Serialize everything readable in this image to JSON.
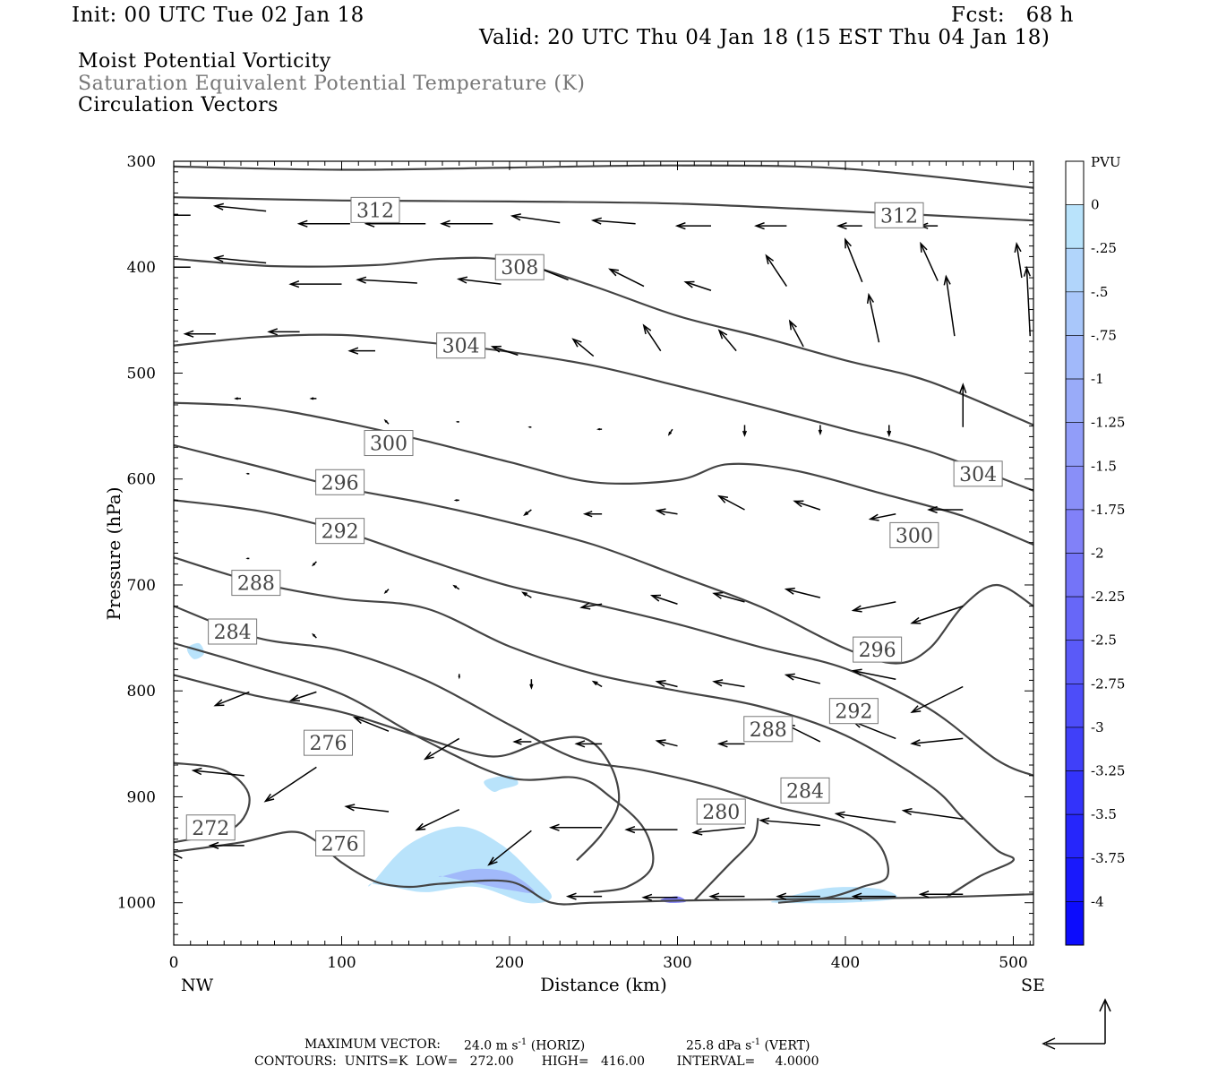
{
  "header": {
    "init": "Init: 00 UTC Tue 02 Jan 18",
    "fcst": "Fcst:   68 h",
    "valid": "Valid: 20 UTC Thu 04 Jan 18 (15 EST Thu 04 Jan 18)"
  },
  "titles": {
    "line1": "Moist Potential Vorticity",
    "line2": "Saturation Equivalent Potential Temperature (K)",
    "line3": "Circulation Vectors"
  },
  "footer": {
    "max_label": "MAXIMUM VECTOR:",
    "max_horiz_value": "24.0 m s",
    "max_horiz_suffix": " (HORIZ)",
    "max_vert_value": "25.8 dPa s",
    "max_vert_suffix": " (VERT)",
    "exponent": "-1",
    "contours": "CONTOURS:  UNITS=K  LOW=   272.00       HIGH=   416.00        INTERVAL=     4.0000"
  },
  "colors": {
    "contour": "#444444",
    "vector": "#000000",
    "pv_light": "#b9e3fb"
  },
  "chart_data": {
    "type": "contour",
    "xlabel": "Distance (km)",
    "ylabel": "Pressure (hPa)",
    "x_ticks": [
      0,
      100,
      200,
      300,
      400,
      500
    ],
    "y_ticks": [
      300,
      400,
      500,
      600,
      700,
      800,
      900,
      1000
    ],
    "xlim": [
      0,
      512
    ],
    "ylim": [
      300,
      1040
    ],
    "x_end_labels": {
      "left": "NW",
      "right": "SE"
    },
    "colorbar": {
      "unit": "PVU",
      "ticks": [
        "0",
        "-.25",
        "-.5",
        "-.75",
        "-1",
        "-1.25",
        "-1.5",
        "-1.75",
        "-2",
        "-2.25",
        "-2.5",
        "-2.75",
        "-3",
        "-3.25",
        "-3.5",
        "-3.75",
        "-4"
      ],
      "colors": [
        "#ffffff",
        "#ffffff",
        "#b9e3fb",
        "#b1d5fb",
        "#a9c7fa",
        "#a1b9fa",
        "#99abf9",
        "#919df9",
        "#898ff8",
        "#8181f8",
        "#7474f8",
        "#6767f8",
        "#5a5af8",
        "#4d4df9",
        "#4040f9",
        "#3333fa",
        "#2626fb",
        "#1919fc",
        "#0c0cfd"
      ]
    },
    "contours": [
      {
        "level": 312,
        "x": [
          0,
          100,
          200,
          300,
          400,
          512
        ],
        "p": [
          334,
          337,
          338,
          340,
          347,
          356
        ]
      },
      {
        "level": 312,
        "x": [
          0,
          100,
          200,
          300,
          400,
          512
        ],
        "p": [
          305,
          308,
          306,
          304,
          307,
          325
        ]
      },
      {
        "level": 308,
        "x": [
          0,
          60,
          120,
          160,
          200,
          250,
          300,
          350,
          400,
          450,
          512
        ],
        "p": [
          392,
          399,
          398,
          392,
          394,
          418,
          446,
          466,
          488,
          508,
          549
        ]
      },
      {
        "level": 304,
        "x": [
          0,
          50,
          100,
          150,
          200,
          250,
          300,
          350,
          400,
          450,
          512
        ],
        "p": [
          474,
          466,
          464,
          471,
          480,
          493,
          512,
          532,
          553,
          574,
          611
        ]
      },
      {
        "level": 300,
        "x": [
          0,
          50,
          100,
          150,
          200,
          250,
          300,
          330,
          370,
          420,
          470,
          512
        ],
        "p": [
          528,
          532,
          546,
          564,
          584,
          603,
          601,
          586,
          592,
          613,
          635,
          662
        ]
      },
      {
        "level": 296,
        "x": [
          0,
          50,
          100,
          150,
          200,
          250,
          300,
          350,
          400,
          430,
          450,
          470,
          490,
          512
        ],
        "p": [
          568,
          588,
          608,
          623,
          641,
          662,
          691,
          721,
          760,
          774,
          760,
          720,
          700,
          720
        ]
      },
      {
        "level": 292,
        "x": [
          0,
          50,
          100,
          150,
          200,
          250,
          300,
          350,
          400,
          450,
          490,
          512
        ],
        "p": [
          620,
          630,
          649,
          676,
          701,
          718,
          737,
          759,
          779,
          817,
          865,
          880
        ]
      },
      {
        "level": 288,
        "x": [
          0,
          50,
          100,
          150,
          200,
          250,
          300,
          350,
          400,
          450,
          470,
          490,
          500,
          480,
          460
        ],
        "p": [
          674,
          698,
          713,
          722,
          758,
          784,
          800,
          815,
          842,
          889,
          920,
          950,
          960,
          975,
          995
        ]
      },
      {
        "level": 284,
        "x": [
          0,
          50,
          100,
          150,
          200,
          240,
          280,
          320,
          360,
          400,
          420,
          425,
          410,
          390,
          360
        ],
        "p": [
          720,
          750,
          762,
          790,
          832,
          864,
          875,
          890,
          910,
          925,
          945,
          975,
          985,
          995,
          1000
        ]
      },
      {
        "level": 280,
        "x": [
          0,
          50,
          100,
          150,
          200,
          240,
          260,
          280,
          285,
          270,
          250
        ],
        "p": [
          755,
          778,
          803,
          847,
          882,
          882,
          900,
          930,
          965,
          985,
          990
        ]
      },
      {
        "level": 276,
        "x": [
          0,
          50,
          100,
          150,
          190,
          220,
          245,
          260,
          265,
          255,
          240
        ],
        "p": [
          785,
          805,
          820,
          845,
          862,
          848,
          845,
          870,
          905,
          935,
          960
        ]
      },
      {
        "level": 280,
        "x": [
          310,
          330,
          345,
          348
        ],
        "p": [
          998,
          965,
          940,
          920
        ]
      },
      {
        "level": 272,
        "x": [
          0,
          30,
          45,
          35,
          0
        ],
        "p": [
          868,
          875,
          900,
          930,
          943
        ]
      },
      {
        "level": 272,
        "x": [
          0,
          40,
          70,
          85,
          100,
          120,
          140,
          160,
          200,
          225,
          250,
          300,
          350,
          400,
          450,
          512
        ],
        "p": [
          952,
          943,
          933,
          942,
          962,
          980,
          985,
          982,
          980,
          1000,
          1000,
          998,
          997,
          996,
          995,
          992
        ]
      }
    ],
    "contour_labels": [
      {
        "text": "312",
        "x": 120,
        "p": 346
      },
      {
        "text": "312",
        "x": 432,
        "p": 351
      },
      {
        "text": "308",
        "x": 206,
        "p": 400
      },
      {
        "text": "304",
        "x": 171,
        "p": 474
      },
      {
        "text": "300",
        "x": 128,
        "p": 566
      },
      {
        "text": "296",
        "x": 99,
        "p": 603
      },
      {
        "text": "292",
        "x": 99,
        "p": 649
      },
      {
        "text": "288",
        "x": 49,
        "p": 698
      },
      {
        "text": "284",
        "x": 35,
        "p": 744
      },
      {
        "text": "276",
        "x": 92,
        "p": 849
      },
      {
        "text": "272",
        "x": 22,
        "p": 929
      },
      {
        "text": "276",
        "x": 99,
        "p": 944
      },
      {
        "text": "304",
        "x": 479,
        "p": 595
      },
      {
        "text": "300",
        "x": 441,
        "p": 653
      },
      {
        "text": "296",
        "x": 419,
        "p": 761
      },
      {
        "text": "292",
        "x": 405,
        "p": 819
      },
      {
        "text": "288",
        "x": 354,
        "p": 836
      },
      {
        "text": "284",
        "x": 376,
        "p": 894
      },
      {
        "text": "280",
        "x": 326,
        "p": 914
      }
    ],
    "pv_regions": [
      {
        "value": -0.25,
        "x": [
          118,
          140,
          170,
          195,
          215,
          225,
          210,
          180,
          150,
          130,
          118
        ],
        "p": [
          982,
          945,
          928,
          945,
          975,
          995,
          1000,
          985,
          990,
          985,
          982
        ]
      },
      {
        "value": -0.25,
        "x": [
          185,
          200,
          205,
          195,
          190
        ],
        "p": [
          885,
          880,
          888,
          893,
          895
        ]
      },
      {
        "value": -0.25,
        "x": [
          360,
          390,
          420,
          430,
          400,
          360
        ],
        "p": [
          997,
          986,
          987,
          996,
          1000,
          1000
        ]
      },
      {
        "value": -0.25,
        "x": [
          8,
          15,
          18,
          12
        ],
        "p": [
          760,
          755,
          765,
          770
        ]
      },
      {
        "value": -1.0,
        "x": [
          160,
          180,
          200,
          215,
          200,
          175,
          160
        ],
        "p": [
          975,
          968,
          972,
          990,
          988,
          980,
          975
        ]
      },
      {
        "value": -2.0,
        "x": [
          290,
          300,
          305,
          295
        ],
        "p": [
          997,
          994,
          999,
          1000
        ]
      }
    ],
    "vectors": [
      {
        "x": 10,
        "p": 351,
        "u": 30,
        "v": 0
      },
      {
        "x": 55,
        "p": 347,
        "u": 30,
        "v": -3
      },
      {
        "x": 105,
        "p": 359,
        "u": 30,
        "v": 0
      },
      {
        "x": 150,
        "p": 359,
        "u": 35,
        "v": 0
      },
      {
        "x": 190,
        "p": 359,
        "u": 30,
        "v": 0
      },
      {
        "x": 230,
        "p": 358,
        "u": 28,
        "v": -4
      },
      {
        "x": 275,
        "p": 359,
        "u": 25,
        "v": -2
      },
      {
        "x": 320,
        "p": 361,
        "u": 20,
        "v": 0
      },
      {
        "x": 365,
        "p": 361,
        "u": 18,
        "v": 0
      },
      {
        "x": 410,
        "p": 361,
        "u": 14,
        "v": 0
      },
      {
        "x": 455,
        "p": 361,
        "u": 10,
        "v": 0
      },
      {
        "x": 10,
        "p": 400,
        "u": 30,
        "v": 0
      },
      {
        "x": 55,
        "p": 396,
        "u": 30,
        "v": -3
      },
      {
        "x": 100,
        "p": 416,
        "u": 30,
        "v": 0
      },
      {
        "x": 145,
        "p": 415,
        "u": 35,
        "v": -2
      },
      {
        "x": 195,
        "p": 416,
        "u": 25,
        "v": -3
      },
      {
        "x": 235,
        "p": 412,
        "u": 25,
        "v": -10
      },
      {
        "x": 280,
        "p": 418,
        "u": 20,
        "v": -10
      },
      {
        "x": 320,
        "p": 422,
        "u": 15,
        "v": -5
      },
      {
        "x": 365,
        "p": 418,
        "u": 12,
        "v": -18
      },
      {
        "x": 410,
        "p": 414,
        "u": 10,
        "v": -25
      },
      {
        "x": 455,
        "p": 413,
        "u": 10,
        "v": -22
      },
      {
        "x": 505,
        "p": 410,
        "u": 3,
        "v": -20
      },
      {
        "x": 25,
        "p": 463,
        "u": 18,
        "v": 0
      },
      {
        "x": 75,
        "p": 461,
        "u": 18,
        "v": 0
      },
      {
        "x": 120,
        "p": 479,
        "u": 15,
        "v": 0
      },
      {
        "x": 205,
        "p": 483,
        "u": 15,
        "v": -5
      },
      {
        "x": 250,
        "p": 484,
        "u": 12,
        "v": -10
      },
      {
        "x": 290,
        "p": 479,
        "u": 10,
        "v": -15
      },
      {
        "x": 335,
        "p": 479,
        "u": 10,
        "v": -12
      },
      {
        "x": 375,
        "p": 475,
        "u": 8,
        "v": -15
      },
      {
        "x": 420,
        "p": 471,
        "u": 6,
        "v": -28
      },
      {
        "x": 465,
        "p": 465,
        "u": 5,
        "v": -35
      },
      {
        "x": 510,
        "p": 465,
        "u": 2,
        "v": -40
      },
      {
        "x": 40,
        "p": 524,
        "u": 3,
        "v": 0
      },
      {
        "x": 85,
        "p": 524,
        "u": 3,
        "v": 0
      },
      {
        "x": 128,
        "p": 548,
        "u": 2,
        "v": -2
      },
      {
        "x": 170,
        "p": 546,
        "u": 1,
        "v": 0
      },
      {
        "x": 213,
        "p": 551,
        "u": 1,
        "v": 0
      },
      {
        "x": 255,
        "p": 553,
        "u": 2,
        "v": 0
      },
      {
        "x": 297,
        "p": 553,
        "u": 2,
        "v": 3
      },
      {
        "x": 340,
        "p": 549,
        "u": 0,
        "v": 6
      },
      {
        "x": 385,
        "p": 549,
        "u": 0,
        "v": 5
      },
      {
        "x": 426,
        "p": 549,
        "u": 0,
        "v": 6
      },
      {
        "x": 470,
        "p": 551,
        "u": 0,
        "v": -25
      },
      {
        "x": 45,
        "p": 595,
        "u": 1,
        "v": 0
      },
      {
        "x": 170,
        "p": 620,
        "u": 2,
        "v": 0
      },
      {
        "x": 213,
        "p": 629,
        "u": 4,
        "v": 3
      },
      {
        "x": 255,
        "p": 633,
        "u": 10,
        "v": 0
      },
      {
        "x": 300,
        "p": 633,
        "u": 12,
        "v": -2
      },
      {
        "x": 340,
        "p": 629,
        "u": 15,
        "v": -8
      },
      {
        "x": 385,
        "p": 629,
        "u": 15,
        "v": -5
      },
      {
        "x": 430,
        "p": 633,
        "u": 15,
        "v": 3
      },
      {
        "x": 470,
        "p": 629,
        "u": 20,
        "v": 0
      },
      {
        "x": 45,
        "p": 675,
        "u": 1,
        "v": 0
      },
      {
        "x": 85,
        "p": 678,
        "u": 2,
        "v": 2
      },
      {
        "x": 128,
        "p": 704,
        "u": 2,
        "v": 2
      },
      {
        "x": 170,
        "p": 704,
        "u": 3,
        "v": -2
      },
      {
        "x": 213,
        "p": 712,
        "u": 5,
        "v": -3
      },
      {
        "x": 255,
        "p": 718,
        "u": 12,
        "v": 2
      },
      {
        "x": 300,
        "p": 718,
        "u": 15,
        "v": -5
      },
      {
        "x": 340,
        "p": 716,
        "u": 18,
        "v": -5
      },
      {
        "x": 385,
        "p": 712,
        "u": 20,
        "v": -5
      },
      {
        "x": 430,
        "p": 716,
        "u": 25,
        "v": 5
      },
      {
        "x": 470,
        "p": 720,
        "u": 30,
        "v": 10
      },
      {
        "x": 85,
        "p": 750,
        "u": 2,
        "v": -2
      },
      {
        "x": 170,
        "p": 784,
        "u": 0,
        "v": 2
      },
      {
        "x": 213,
        "p": 789,
        "u": 0,
        "v": 5
      },
      {
        "x": 255,
        "p": 796,
        "u": 5,
        "v": -3
      },
      {
        "x": 300,
        "p": 796,
        "u": 12,
        "v": -3
      },
      {
        "x": 340,
        "p": 796,
        "u": 18,
        "v": -3
      },
      {
        "x": 385,
        "p": 793,
        "u": 20,
        "v": -5
      },
      {
        "x": 430,
        "p": 789,
        "u": 25,
        "v": -5
      },
      {
        "x": 470,
        "p": 796,
        "u": 30,
        "v": 15
      },
      {
        "x": 0,
        "p": 818,
        "u": 20,
        "v": -8
      },
      {
        "x": 45,
        "p": 801,
        "u": 20,
        "v": 8
      },
      {
        "x": 85,
        "p": 801,
        "u": 15,
        "v": 5
      },
      {
        "x": 128,
        "p": 838,
        "u": 20,
        "v": -8
      },
      {
        "x": 170,
        "p": 845,
        "u": 20,
        "v": 12
      },
      {
        "x": 213,
        "p": 848,
        "u": 10,
        "v": 0
      },
      {
        "x": 255,
        "p": 850,
        "u": 15,
        "v": 0
      },
      {
        "x": 300,
        "p": 852,
        "u": 12,
        "v": -3
      },
      {
        "x": 340,
        "p": 850,
        "u": 15,
        "v": 0
      },
      {
        "x": 385,
        "p": 848,
        "u": 20,
        "v": -10
      },
      {
        "x": 430,
        "p": 845,
        "u": 25,
        "v": -10
      },
      {
        "x": 470,
        "p": 845,
        "u": 30,
        "v": 3
      },
      {
        "x": 0,
        "p": 890,
        "u": 30,
        "v": -8
      },
      {
        "x": 42,
        "p": 880,
        "u": 30,
        "v": -3
      },
      {
        "x": 85,
        "p": 872,
        "u": 30,
        "v": 20
      },
      {
        "x": 128,
        "p": 914,
        "u": 25,
        "v": -3
      },
      {
        "x": 170,
        "p": 912,
        "u": 25,
        "v": 12
      },
      {
        "x": 213,
        "p": 932,
        "u": 25,
        "v": 20
      },
      {
        "x": 255,
        "p": 929,
        "u": 30,
        "v": 0
      },
      {
        "x": 300,
        "p": 931,
        "u": 30,
        "v": 0
      },
      {
        "x": 340,
        "p": 929,
        "u": 30,
        "v": 3
      },
      {
        "x": 385,
        "p": 927,
        "u": 35,
        "v": -3
      },
      {
        "x": 430,
        "p": 924,
        "u": 35,
        "v": -5
      },
      {
        "x": 470,
        "p": 921,
        "u": 35,
        "v": -5
      },
      {
        "x": 5,
        "p": 958,
        "u": 10,
        "v": -5
      },
      {
        "x": 42,
        "p": 946,
        "u": 20,
        "v": 0
      },
      {
        "x": 255,
        "p": 994,
        "u": 20,
        "v": 0
      },
      {
        "x": 300,
        "p": 995,
        "u": 20,
        "v": 0
      },
      {
        "x": 340,
        "p": 994,
        "u": 20,
        "v": 0
      },
      {
        "x": 385,
        "p": 994,
        "u": 25,
        "v": 0
      },
      {
        "x": 430,
        "p": 994,
        "u": 25,
        "v": 0
      },
      {
        "x": 470,
        "p": 992,
        "u": 25,
        "v": 0
      }
    ]
  }
}
